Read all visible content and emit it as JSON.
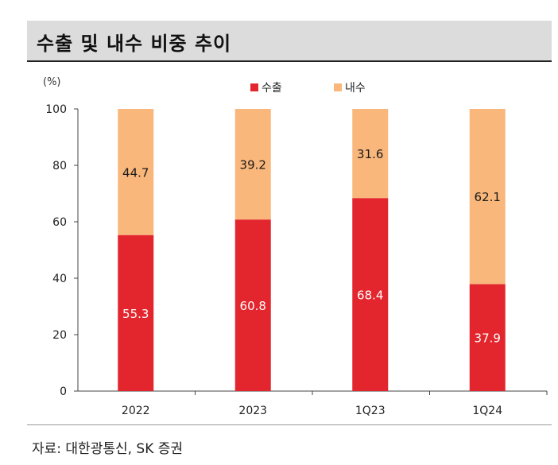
{
  "title": "수출 및 내수 비중 추이",
  "source": "자료: 대한광통신, SK 증권",
  "colors": {
    "export": "#e3262e",
    "domestic": "#f9b77b",
    "export_label": "#ffffff",
    "domestic_label": "#1a1a1a"
  },
  "chart_data": {
    "type": "bar",
    "stacked": true,
    "unit_label": "(%)",
    "categories": [
      "2022",
      "2023",
      "1Q23",
      "1Q24"
    ],
    "series": [
      {
        "name": "수출",
        "values": [
          55.3,
          60.8,
          68.4,
          37.9
        ]
      },
      {
        "name": "내수",
        "values": [
          44.7,
          39.2,
          31.6,
          62.1
        ]
      }
    ],
    "ylim": [
      0,
      100
    ],
    "yticks": [
      0,
      20,
      40,
      60,
      80,
      100
    ],
    "grid": false,
    "legend_position": "top-center"
  }
}
